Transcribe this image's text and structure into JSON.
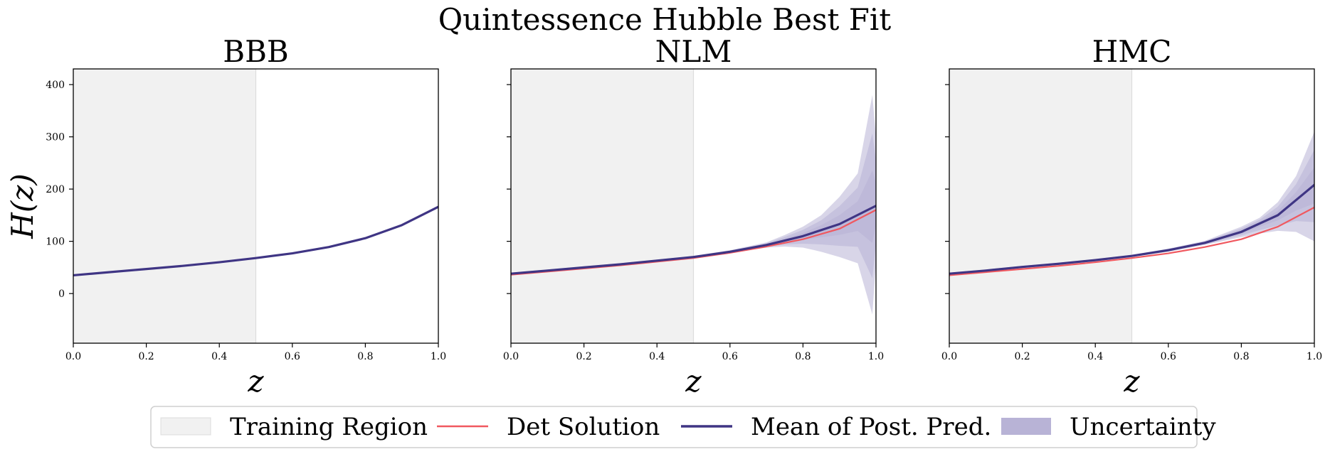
{
  "title": "Quintessence Hubble Best Fit",
  "colors": {
    "training_region": "#f1f1f1",
    "training_edge": "#dcdcdc",
    "det_solution": "#f0585f",
    "mean_post_pred": "#3f3584",
    "uncertainty": "#b8b3d6"
  },
  "chart_data": [
    {
      "type": "line",
      "title": "BBB",
      "xlabel": "z",
      "ylabel": "H(z)",
      "xlim": [
        0.0,
        1.0
      ],
      "ylim": [
        -95,
        430
      ],
      "xticks": [
        0.0,
        0.2,
        0.4,
        0.6,
        0.8,
        1.0
      ],
      "xtick_labels": [
        "0.0",
        "0.2",
        "0.4",
        "0.6",
        "0.8",
        "1.0"
      ],
      "yticks": [
        0,
        100,
        200,
        300,
        400
      ],
      "ytick_labels": [
        "0",
        "100",
        "200",
        "300",
        "400"
      ],
      "training_region": [
        0.0,
        0.5
      ],
      "x": [
        0.0,
        0.1,
        0.2,
        0.3,
        0.4,
        0.5,
        0.6,
        0.7,
        0.8,
        0.9,
        1.0
      ],
      "series": [
        {
          "name": "Det Solution",
          "values": [
            35,
            41,
            47,
            53,
            60,
            68,
            77,
            89,
            106,
            131,
            166
          ]
        },
        {
          "name": "Mean of Post. Pred.",
          "values": [
            35,
            41,
            47,
            53,
            60,
            68,
            77,
            89,
            106,
            131,
            166
          ]
        }
      ],
      "uncertainty": {
        "x": [
          0.0,
          0.1,
          0.2,
          0.3,
          0.4,
          0.5,
          0.6,
          0.7,
          0.8,
          0.9,
          1.0
        ],
        "lower": [
          34,
          40,
          46,
          52,
          59,
          67,
          76,
          88,
          105,
          130,
          164
        ],
        "upper": [
          36,
          42,
          48,
          54,
          61,
          69,
          78,
          90,
          107,
          132,
          168
        ]
      }
    },
    {
      "type": "line",
      "title": "NLM",
      "xlabel": "z",
      "ylabel": "",
      "xlim": [
        0.0,
        1.0
      ],
      "ylim": [
        -95,
        430
      ],
      "xticks": [
        0.0,
        0.2,
        0.4,
        0.6,
        0.8,
        1.0
      ],
      "xtick_labels": [
        "0.0",
        "0.2",
        "0.4",
        "0.6",
        "0.8",
        "1.0"
      ],
      "yticks": [
        0,
        100,
        200,
        300,
        400
      ],
      "ytick_labels": [],
      "training_region": [
        0.0,
        0.5
      ],
      "x": [
        0.0,
        0.1,
        0.2,
        0.3,
        0.4,
        0.5,
        0.6,
        0.7,
        0.8,
        0.9,
        1.0
      ],
      "series": [
        {
          "name": "Det Solution",
          "values": [
            36,
            42,
            48,
            54,
            61,
            68,
            78,
            90,
            104,
            124,
            160
          ]
        },
        {
          "name": "Mean of Post. Pred.",
          "values": [
            38,
            44,
            50,
            56,
            63,
            70,
            80,
            93,
            110,
            133,
            168
          ]
        }
      ],
      "uncertainty": {
        "x": [
          0.0,
          0.1,
          0.2,
          0.3,
          0.4,
          0.5,
          0.6,
          0.7,
          0.75,
          0.8,
          0.85,
          0.9,
          0.95,
          0.99,
          1.0
        ],
        "lower": [
          36,
          42,
          48,
          54,
          61,
          68,
          78,
          88,
          90,
          88,
          80,
          70,
          58,
          -40,
          60
        ],
        "upper": [
          40,
          46,
          52,
          58,
          65,
          72,
          83,
          98,
          112,
          128,
          150,
          185,
          230,
          380,
          300
        ]
      }
    },
    {
      "type": "line",
      "title": "HMC",
      "xlabel": "z",
      "ylabel": "",
      "xlim": [
        0.0,
        1.0
      ],
      "ylim": [
        -95,
        430
      ],
      "xticks": [
        0.0,
        0.2,
        0.4,
        0.6,
        0.8,
        1.0
      ],
      "xtick_labels": [
        "0.0",
        "0.2",
        "0.4",
        "0.6",
        "0.8",
        "1.0"
      ],
      "yticks": [
        0,
        100,
        200,
        300,
        400
      ],
      "ytick_labels": [],
      "training_region": [
        0.0,
        0.5
      ],
      "x": [
        0.0,
        0.1,
        0.2,
        0.3,
        0.4,
        0.5,
        0.6,
        0.7,
        0.8,
        0.9,
        1.0
      ],
      "series": [
        {
          "name": "Det Solution",
          "values": [
            35,
            41,
            47,
            53,
            60,
            68,
            77,
            89,
            104,
            128,
            165
          ]
        },
        {
          "name": "Mean of Post. Pred.",
          "values": [
            38,
            44,
            51,
            57,
            64,
            72,
            83,
            97,
            118,
            150,
            208
          ]
        }
      ],
      "uncertainty": {
        "x": [
          0.0,
          0.1,
          0.2,
          0.3,
          0.4,
          0.5,
          0.6,
          0.7,
          0.8,
          0.85,
          0.9,
          0.95,
          1.0
        ],
        "lower": [
          36,
          42,
          49,
          55,
          62,
          70,
          80,
          93,
          108,
          115,
          120,
          118,
          100
        ],
        "upper": [
          40,
          46,
          53,
          59,
          66,
          74,
          86,
          101,
          128,
          145,
          175,
          225,
          310
        ]
      }
    }
  ],
  "legend": {
    "placement": "bottom-center",
    "items": [
      {
        "label": "Training Region",
        "kind": "patch",
        "color_key": "training_region"
      },
      {
        "label": "Det Solution",
        "kind": "line",
        "color_key": "det_solution"
      },
      {
        "label": "Mean of Post. Pred.",
        "kind": "line",
        "color_key": "mean_post_pred"
      },
      {
        "label": "Uncertainty",
        "kind": "patch",
        "color_key": "uncertainty"
      }
    ]
  }
}
